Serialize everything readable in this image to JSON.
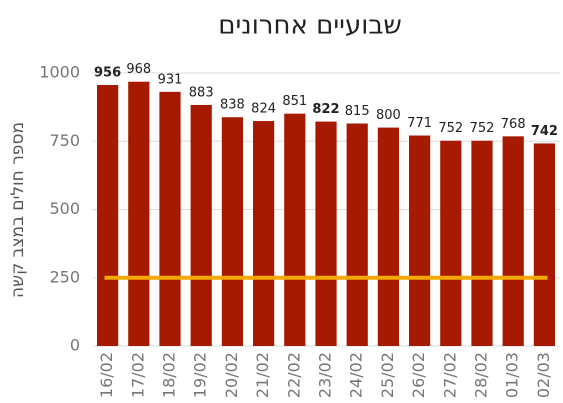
{
  "chart_data": {
    "type": "bar",
    "title": "שבועיים אחרונים",
    "y_label": "מספר חולים במצב קשה",
    "categories": [
      "16/02",
      "17/02",
      "18/02",
      "19/02",
      "20/02",
      "21/02",
      "22/02",
      "23/02",
      "24/02",
      "25/02",
      "26/02",
      "27/02",
      "28/02",
      "01/03",
      "02/03"
    ],
    "values": [
      956,
      968,
      931,
      883,
      838,
      824,
      851,
      822,
      815,
      800,
      771,
      752,
      752,
      768,
      742
    ],
    "bold_value_indices": [
      0,
      7,
      14
    ],
    "color": "#a51a00",
    "reference_line": {
      "value": 250,
      "color": "#f5a800"
    },
    "ylim": [
      0,
      1000
    ],
    "yticks": [
      0,
      250,
      500,
      750,
      1000
    ],
    "grid": true
  }
}
